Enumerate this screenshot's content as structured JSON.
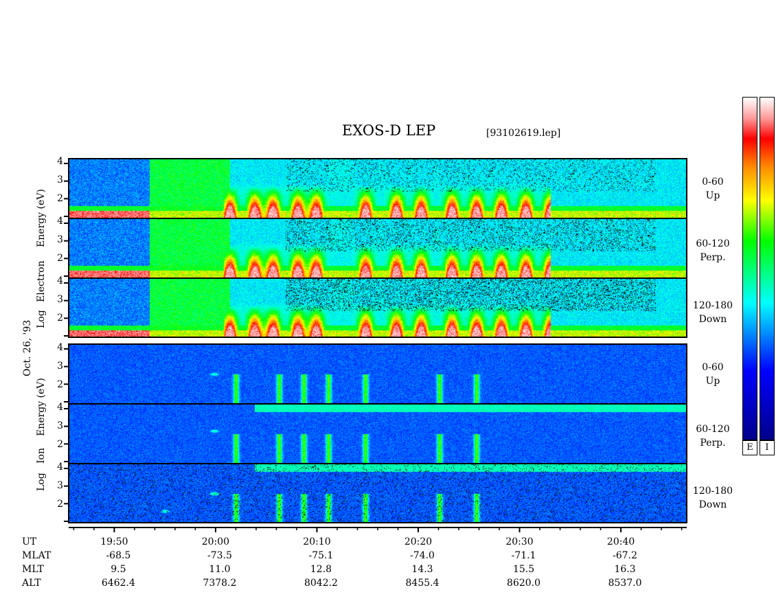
{
  "title": "EXOS-D LEP",
  "filename": "[93102619.lep]",
  "date_label": "Oct. 26, '93",
  "electron_axis_words": [
    "Log",
    "Electron",
    "Energy (eV)"
  ],
  "ion_axis_words": [
    "Log",
    "Ion",
    "Energy (eV)"
  ],
  "colorbar_labels": [
    "E",
    "I"
  ],
  "colorbar_colors": [
    "#ffffff",
    "#ff9999",
    "#ff0000",
    "#ff8800",
    "#ffff00",
    "#00ff00",
    "#00ffff",
    "#0000ff",
    "#00008b"
  ],
  "chart_data": {
    "type": "heatmap",
    "title": "EXOS-D LEP",
    "panels": [
      {
        "species": "Electron",
        "pitch_angle": [
          "0-60",
          "Up"
        ],
        "yticks": [
          "4",
          "3",
          "2"
        ]
      },
      {
        "species": "Electron",
        "pitch_angle": [
          "60-120",
          "Perp."
        ],
        "yticks": [
          "4",
          "3",
          "2"
        ]
      },
      {
        "species": "Electron",
        "pitch_angle": [
          "120-180",
          "Down"
        ],
        "yticks": [
          "4",
          "3",
          "2"
        ]
      },
      {
        "species": "Ion",
        "pitch_angle": [
          "0-60",
          "Up"
        ],
        "yticks": [
          "4",
          "3",
          "2"
        ]
      },
      {
        "species": "Ion",
        "pitch_angle": [
          "60-120",
          "Perp."
        ],
        "yticks": [
          "4",
          "3",
          "2"
        ]
      },
      {
        "species": "Ion",
        "pitch_angle": [
          "120-180",
          "Down"
        ],
        "yticks": [
          "4",
          "3",
          "2"
        ]
      }
    ],
    "ylim": [
      1,
      4
    ],
    "x_axis": {
      "xlim_minutes": [
        -4.5,
        56.5
      ],
      "tick_minutes": [
        0,
        10,
        20,
        30,
        40,
        50
      ],
      "row_labels": [
        "UT",
        "MLAT",
        "MLT",
        "ALT"
      ],
      "UT": [
        "19:50",
        "20:00",
        "20:10",
        "20:20",
        "20:30",
        "20:40"
      ],
      "MLAT": [
        "-68.5",
        "-73.5",
        "-75.1",
        "-74.0",
        "-71.1",
        "-67.2"
      ],
      "MLT": [
        "9.5",
        "11.0",
        "12.8",
        "14.3",
        "15.5",
        "16.3"
      ],
      "ALT": [
        "6462.4",
        "7378.2",
        "8042.2",
        "8455.4",
        "8620.0",
        "8537.0"
      ]
    }
  }
}
